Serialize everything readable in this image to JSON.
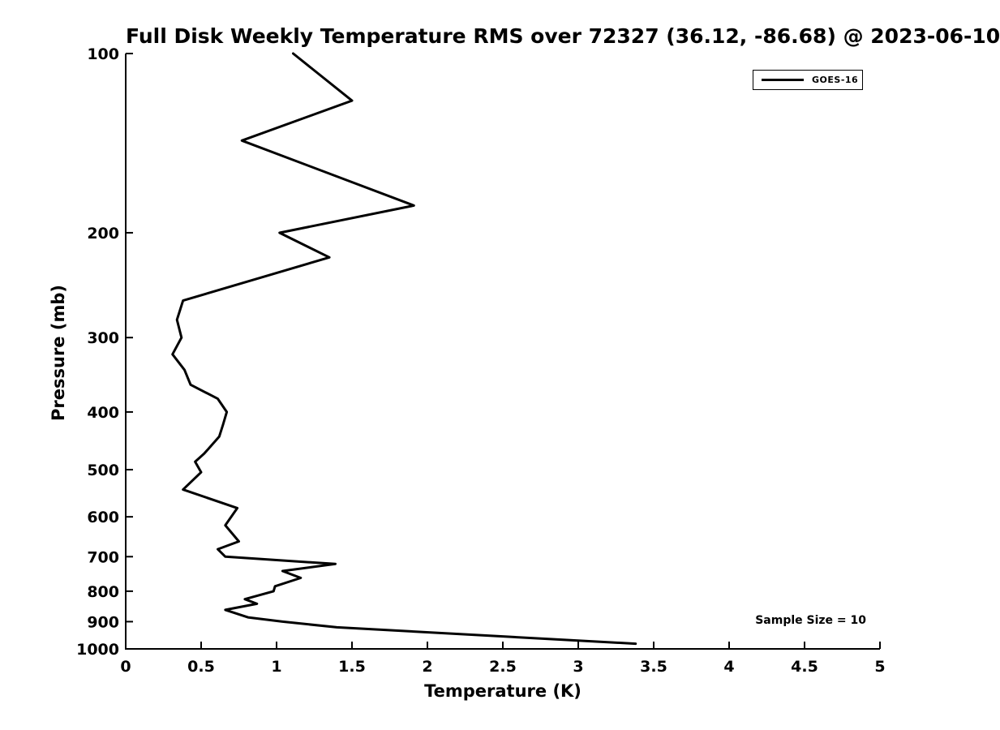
{
  "chart": {
    "title": "Full Disk Weekly Temperature RMS over 72327 (36.12, -86.68) @ 2023-06-10",
    "xlabel": "Temperature (K)",
    "ylabel": "Pressure (mb)",
    "sample_size_text": "Sample Size = 10",
    "legend": {
      "series_label": "GOES-16"
    }
  },
  "colors": {
    "line": "#000000",
    "text": "#000000",
    "background": "#ffffff",
    "spine": "#000000"
  },
  "chart_data": {
    "type": "line",
    "title": "Full Disk Weekly Temperature RMS over 72327 (36.12, -86.68) @ 2023-06-10",
    "xlabel": "Temperature (K)",
    "ylabel": "Pressure (mb)",
    "xlim": [
      0,
      5
    ],
    "ylim": [
      1000,
      100
    ],
    "y_scale": "log",
    "y_axis_inverted": true,
    "grid": false,
    "legend_position": "upper right",
    "annotations": [
      "Sample Size = 10"
    ],
    "x_ticks": [
      0,
      0.5,
      1,
      1.5,
      2,
      2.5,
      3,
      3.5,
      4,
      4.5,
      5
    ],
    "x_tick_labels": [
      "0",
      "0.5",
      "1",
      "1.5",
      "2",
      "2.5",
      "3",
      "3.5",
      "4",
      "4.5",
      "5"
    ],
    "y_ticks": [
      100,
      200,
      300,
      400,
      500,
      600,
      700,
      800,
      900,
      1000
    ],
    "y_tick_labels": [
      "100",
      "200",
      "300",
      "400",
      "500",
      "600",
      "700",
      "800",
      "900",
      "1000"
    ],
    "series": [
      {
        "name": "GOES-16",
        "color": "#000000",
        "line_width": 3,
        "pressure_mb": [
          100,
          120,
          140,
          180,
          200,
          220,
          260,
          280,
          300,
          320,
          340,
          360,
          380,
          400,
          420,
          440,
          470,
          485,
          505,
          540,
          580,
          620,
          660,
          680,
          700,
          720,
          740,
          760,
          785,
          800,
          825,
          840,
          860,
          885,
          900,
          920,
          980
        ],
        "rms_k": [
          1.11,
          1.5,
          0.77,
          1.91,
          1.02,
          1.35,
          0.38,
          0.34,
          0.37,
          0.31,
          0.39,
          0.43,
          0.61,
          0.67,
          0.645,
          0.62,
          0.52,
          0.46,
          0.5,
          0.38,
          0.74,
          0.66,
          0.75,
          0.61,
          0.66,
          1.39,
          1.04,
          1.16,
          0.99,
          0.98,
          0.79,
          0.87,
          0.66,
          0.81,
          1.04,
          1.4,
          3.38
        ]
      }
    ]
  }
}
